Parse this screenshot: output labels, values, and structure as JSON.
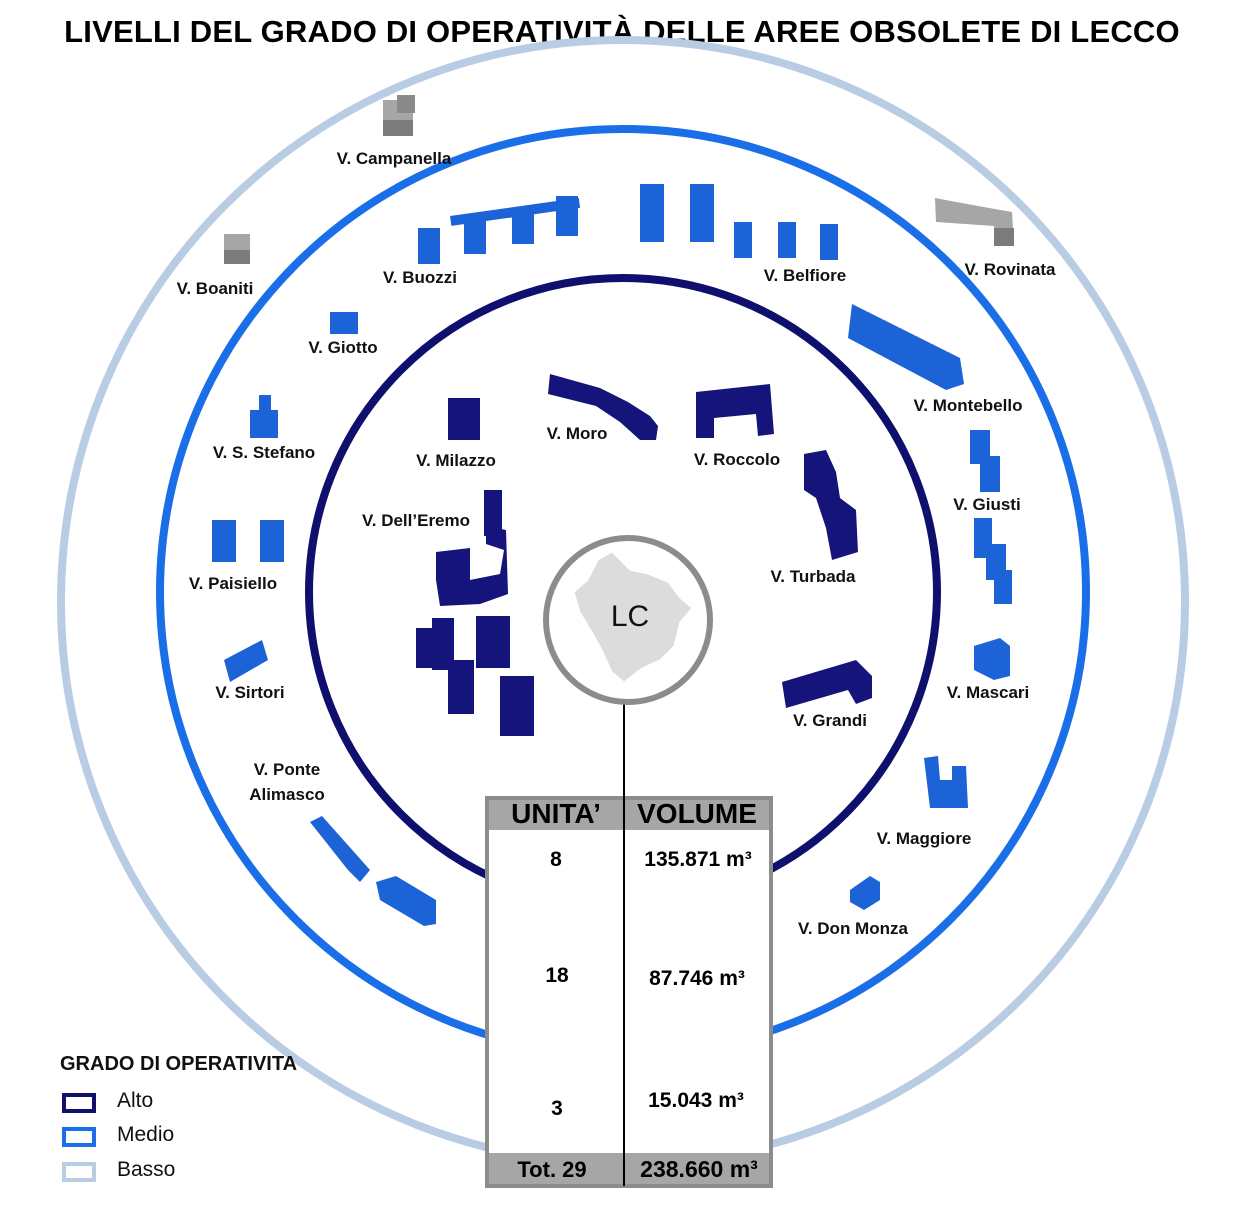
{
  "title": "LIVELLI DEL GRADO DI OPERATIVITÀ DELLE AREE OBSOLETE DI LECCO",
  "colors": {
    "alto": "#0f0f6e",
    "medio": "#1a6fe8",
    "basso": "#b8cce4",
    "center_ring": "#8c8c8c",
    "building_alto": "#14147a",
    "building_medio": "#1b63d6",
    "building_basso": "#a6a6a6"
  },
  "center_label": "LC",
  "labels": {
    "campanella": "V. Campanella",
    "boaniti": "V. Boaniti",
    "buozzi": "V. Buozzi",
    "belfiore": "V. Belfiore",
    "rovinata": "V. Rovinata",
    "giotto": "V. Giotto",
    "montebello": "V. Montebello",
    "s_stefano": "V. S. Stefano",
    "milazzo": "V. Milazzo",
    "moro": "V. Moro",
    "roccolo": "V. Roccolo",
    "giusti": "V. Giusti",
    "dell_eremo": "V. Dell’Eremo",
    "turbada": "V. Turbada",
    "paisiello": "V. Paisiello",
    "mascari": "V. Mascari",
    "sirtori": "V. Sirtori",
    "grandi": "V. Grandi",
    "ponte_alimasco_1": "V. Ponte",
    "ponte_alimasco_2": "Alimasco",
    "maggiore": "V. Maggiore",
    "don_monza": "V. Don Monza"
  },
  "table": {
    "headers": [
      "UNITA’",
      "VOLUME"
    ],
    "rows": [
      {
        "unita": "8",
        "volume": "135.871 m³"
      },
      {
        "unita": "18",
        "volume": "87.746 m³"
      },
      {
        "unita": "3",
        "volume": "15.043 m³"
      }
    ],
    "total": {
      "unita": "Tot. 29",
      "volume": "238.660 m³"
    }
  },
  "legend": {
    "title": "GRADO DI OPERATIVITA",
    "items": [
      {
        "label": "Alto",
        "color": "#0f0f6e"
      },
      {
        "label": "Medio",
        "color": "#1a6fe8"
      },
      {
        "label": "Basso",
        "color": "#b8cce4"
      }
    ]
  }
}
